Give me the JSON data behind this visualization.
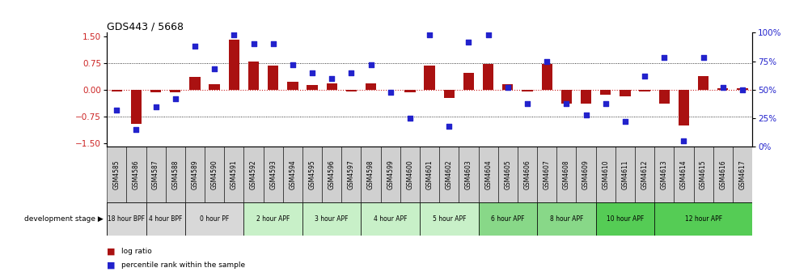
{
  "title": "GDS443 / 5668",
  "samples": [
    "GSM4585",
    "GSM4586",
    "GSM4587",
    "GSM4588",
    "GSM4589",
    "GSM4590",
    "GSM4591",
    "GSM4592",
    "GSM4593",
    "GSM4594",
    "GSM4595",
    "GSM4596",
    "GSM4597",
    "GSM4598",
    "GSM4599",
    "GSM4600",
    "GSM4601",
    "GSM4602",
    "GSM4603",
    "GSM4604",
    "GSM4605",
    "GSM4606",
    "GSM4607",
    "GSM4608",
    "GSM4609",
    "GSM4610",
    "GSM4611",
    "GSM4612",
    "GSM4613",
    "GSM4614",
    "GSM4615",
    "GSM4616",
    "GSM4617"
  ],
  "log_ratio": [
    -0.05,
    -0.95,
    -0.08,
    -0.07,
    0.35,
    0.15,
    1.4,
    0.78,
    0.68,
    0.22,
    0.13,
    0.18,
    -0.04,
    0.17,
    -0.01,
    -0.08,
    0.68,
    -0.22,
    0.48,
    0.72,
    0.15,
    -0.05,
    0.72,
    -0.38,
    -0.38,
    -0.15,
    -0.18,
    -0.05,
    -0.38,
    -1.0,
    0.38,
    0.05,
    0.05
  ],
  "percentile": [
    32,
    15,
    35,
    42,
    88,
    68,
    98,
    90,
    90,
    72,
    65,
    60,
    65,
    72,
    48,
    25,
    98,
    18,
    92,
    98,
    52,
    38,
    75,
    38,
    28,
    38,
    22,
    62,
    78,
    5,
    78,
    52,
    50
  ],
  "stages": [
    {
      "label": "18 hour BPF",
      "start": 0,
      "end": 2,
      "color": "#d8d8d8"
    },
    {
      "label": "4 hour BPF",
      "start": 2,
      "end": 4,
      "color": "#d8d8d8"
    },
    {
      "label": "0 hour PF",
      "start": 4,
      "end": 7,
      "color": "#d8d8d8"
    },
    {
      "label": "2 hour APF",
      "start": 7,
      "end": 10,
      "color": "#c8f0c8"
    },
    {
      "label": "3 hour APF",
      "start": 10,
      "end": 13,
      "color": "#c8f0c8"
    },
    {
      "label": "4 hour APF",
      "start": 13,
      "end": 16,
      "color": "#c8f0c8"
    },
    {
      "label": "5 hour APF",
      "start": 16,
      "end": 19,
      "color": "#c8f0c8"
    },
    {
      "label": "6 hour APF",
      "start": 19,
      "end": 22,
      "color": "#88d888"
    },
    {
      "label": "8 hour APF",
      "start": 22,
      "end": 25,
      "color": "#88d888"
    },
    {
      "label": "10 hour APF",
      "start": 25,
      "end": 28,
      "color": "#55cc55"
    },
    {
      "label": "12 hour APF",
      "start": 28,
      "end": 33,
      "color": "#55cc55"
    }
  ],
  "label_cell_color": "#d0d0d0",
  "bar_color": "#aa1111",
  "dot_color": "#2222cc",
  "zero_line_color": "#cc2222",
  "ylim": [
    -1.6,
    1.6
  ],
  "yticks_left": [
    -1.5,
    -0.75,
    0.0,
    0.75,
    1.5
  ],
  "yticks_right": [
    0,
    25,
    50,
    75,
    100
  ],
  "yticks_right_labels": [
    "0%",
    "25%",
    "50%",
    "75%",
    "100%"
  ],
  "hline_vals": [
    -0.75,
    0.75
  ],
  "background_color": "#ffffff"
}
